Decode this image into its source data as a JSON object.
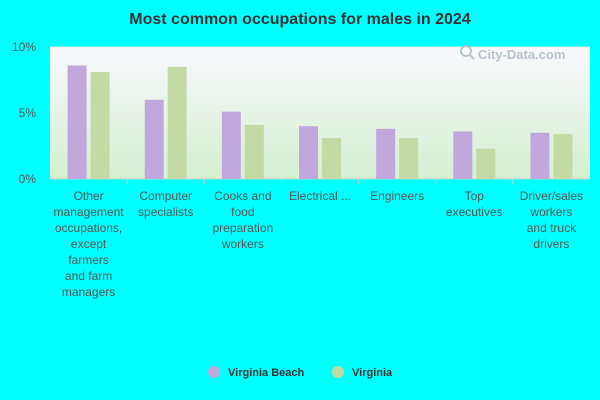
{
  "chart_data": {
    "type": "bar",
    "title": "Most common occupations for males in 2024",
    "xlabel": "",
    "ylabel": "",
    "ylim": [
      0,
      10
    ],
    "y_ticks": [
      {
        "value": 0,
        "label": "0%"
      },
      {
        "value": 5,
        "label": "5%"
      },
      {
        "value": 10,
        "label": "10%"
      }
    ],
    "categories": [
      [
        "Other",
        "management",
        "occupations,",
        "except",
        "farmers",
        "and farm",
        "managers"
      ],
      [
        "Computer",
        "specialists"
      ],
      [
        "Cooks and",
        "food",
        "preparation",
        "workers"
      ],
      [
        "Electrical ..."
      ],
      [
        "Engineers"
      ],
      [
        "Top",
        "executives"
      ],
      [
        "Driver/sales",
        "workers",
        "and truck",
        "drivers"
      ]
    ],
    "series": [
      {
        "name": "Virginia Beach",
        "color": "#c0a8dc",
        "values": [
          8.6,
          6.0,
          5.1,
          4.0,
          3.8,
          3.6,
          3.5
        ]
      },
      {
        "name": "Virginia",
        "color": "#c5d9a5",
        "values": [
          8.1,
          8.5,
          4.1,
          3.1,
          3.1,
          2.3,
          3.4
        ]
      }
    ],
    "legend_position": "bottom",
    "grid": true,
    "plot_background": {
      "top_color": "#f8f8fc",
      "bottom_color": "#d6efd2"
    }
  },
  "watermark": {
    "text": "City-Data.com",
    "icon": "search-icon"
  }
}
